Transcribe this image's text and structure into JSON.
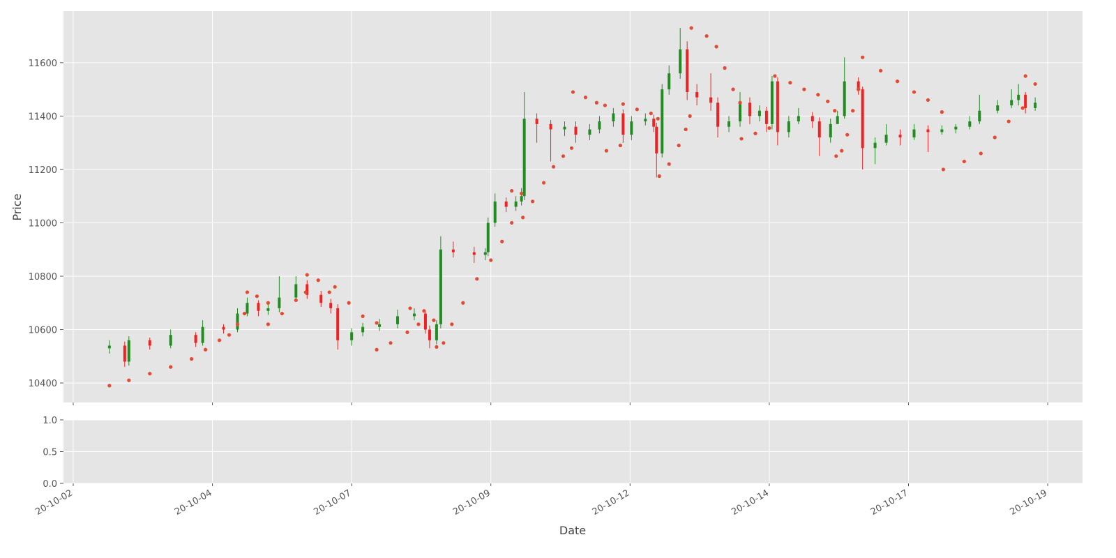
{
  "chart_data": {
    "type": "candlestick",
    "xlabel": "Date",
    "ylabel": "Price",
    "up_color": "#228b22",
    "down_color": "#ee2222",
    "grid": true,
    "xlim": [
      -7,
      725
    ],
    "xticks": [
      {
        "value": 0,
        "label": "20-10-02"
      },
      {
        "value": 100,
        "label": "20-10-04"
      },
      {
        "value": 200,
        "label": "20-10-07"
      },
      {
        "value": 300,
        "label": "20-10-09"
      },
      {
        "value": 400,
        "label": "20-10-12"
      },
      {
        "value": 500,
        "label": "20-10-14"
      },
      {
        "value": 600,
        "label": "20-10-17"
      },
      {
        "value": 700,
        "label": "20-10-19"
      }
    ],
    "ylim": [
      10327,
      11793
    ],
    "yticks": [
      10400,
      10600,
      10800,
      11000,
      11200,
      11400,
      11600
    ],
    "x": [
      26,
      37,
      40,
      55,
      70,
      88,
      93,
      108,
      118,
      125,
      133,
      140,
      148,
      160,
      168,
      178,
      185,
      190,
      200,
      208,
      220,
      233,
      245,
      253,
      256,
      261,
      264,
      273,
      288,
      296,
      298,
      303,
      311,
      318,
      322,
      324,
      333,
      343,
      353,
      361,
      371,
      378,
      388,
      395,
      401,
      411,
      417,
      419,
      423,
      428,
      436,
      441,
      448,
      458,
      463,
      471,
      479,
      486,
      493,
      498,
      502,
      506,
      514,
      521,
      531,
      536,
      544,
      549,
      554,
      564,
      567,
      576,
      584,
      594,
      604,
      614,
      624,
      634,
      644,
      651,
      664,
      674,
      679,
      684,
      691
    ],
    "open": [
      10530,
      10540,
      10480,
      10560,
      10540,
      10580,
      10550,
      10610,
      10600,
      10660,
      10700,
      10670,
      10680,
      10720,
      10770,
      10730,
      10700,
      10680,
      10560,
      10590,
      10610,
      10620,
      10650,
      10660,
      10600,
      10560,
      10620,
      10900,
      10890,
      10880,
      10890,
      11000,
      11080,
      11060,
      11080,
      11100,
      11390,
      11370,
      11350,
      11360,
      11330,
      11350,
      11380,
      11410,
      11330,
      11380,
      11390,
      11360,
      11260,
      11500,
      11560,
      11650,
      11490,
      11470,
      11450,
      11360,
      11380,
      11450,
      11400,
      11420,
      11370,
      11530,
      11340,
      11380,
      11400,
      11380,
      11320,
      11370,
      11400,
      11530,
      11500,
      11280,
      11300,
      11330,
      11320,
      11350,
      11340,
      11350,
      11360,
      11380,
      11420,
      11440,
      11460,
      11480,
      11430
    ],
    "high": [
      10560,
      10555,
      10575,
      10570,
      10600,
      10590,
      10635,
      10620,
      10680,
      10720,
      10710,
      10700,
      10800,
      10800,
      10785,
      10745,
      10715,
      10695,
      10605,
      10625,
      10640,
      10675,
      10680,
      10670,
      10615,
      10635,
      10950,
      10930,
      10910,
      10905,
      11020,
      11110,
      11095,
      11100,
      11130,
      11490,
      11410,
      11385,
      11380,
      11380,
      11370,
      11400,
      11430,
      11425,
      11400,
      11410,
      11405,
      11375,
      11520,
      11590,
      11730,
      11680,
      11520,
      11560,
      11470,
      11400,
      11490,
      11470,
      11440,
      11435,
      11550,
      11545,
      11400,
      11430,
      11415,
      11395,
      11390,
      11420,
      11620,
      11545,
      11510,
      11320,
      11370,
      11350,
      11370,
      11365,
      11365,
      11370,
      11400,
      11480,
      11460,
      11500,
      11520,
      11490,
      11470
    ],
    "low": [
      10510,
      10460,
      10465,
      10525,
      10530,
      10535,
      10540,
      10585,
      10590,
      10650,
      10650,
      10655,
      10665,
      10710,
      10715,
      10685,
      10660,
      10525,
      10540,
      10575,
      10595,
      10605,
      10635,
      10585,
      10530,
      10545,
      10605,
      10870,
      10850,
      10860,
      10875,
      10985,
      11040,
      11045,
      11065,
      11085,
      11300,
      11230,
      11325,
      11300,
      11310,
      11335,
      11360,
      11300,
      11310,
      11365,
      11340,
      11170,
      11245,
      11480,
      11540,
      11460,
      11440,
      11420,
      11320,
      11340,
      11360,
      11370,
      11380,
      11340,
      11350,
      11290,
      11320,
      11370,
      11355,
      11250,
      11300,
      11380,
      11390,
      11480,
      11200,
      11220,
      11290,
      11290,
      11310,
      11265,
      11330,
      11335,
      11350,
      11370,
      11410,
      11430,
      11440,
      11410,
      11420
    ],
    "close": [
      10540,
      10480,
      10560,
      10540,
      10580,
      10550,
      10610,
      10600,
      10660,
      10700,
      10670,
      10680,
      10720,
      10770,
      10730,
      10700,
      10680,
      10560,
      10590,
      10610,
      10620,
      10650,
      10660,
      10600,
      10560,
      10620,
      10900,
      10890,
      10880,
      10890,
      11000,
      11080,
      11060,
      11080,
      11100,
      11390,
      11370,
      11350,
      11360,
      11330,
      11350,
      11380,
      11410,
      11330,
      11380,
      11390,
      11360,
      11260,
      11500,
      11560,
      11650,
      11490,
      11470,
      11450,
      11360,
      11380,
      11450,
      11400,
      11420,
      11370,
      11530,
      11340,
      11380,
      11400,
      11380,
      11320,
      11370,
      11400,
      11530,
      11500,
      11280,
      11300,
      11330,
      11320,
      11350,
      11340,
      11350,
      11360,
      11380,
      11420,
      11440,
      11460,
      11480,
      11430,
      11450
    ],
    "overlay": {
      "type": "scatter",
      "color": "#e24a33",
      "x": [
        26,
        40,
        55,
        70,
        85,
        95,
        105,
        112,
        118,
        123,
        125,
        132,
        140,
        140,
        150,
        160,
        167,
        168,
        176,
        184,
        188,
        198,
        208,
        218,
        218,
        228,
        240,
        248,
        242,
        252,
        259,
        261,
        266,
        272,
        280,
        290,
        300,
        308,
        315,
        315,
        322,
        323,
        330,
        338,
        345,
        352,
        358,
        359,
        368,
        376,
        382,
        383,
        393,
        395,
        405,
        415,
        420,
        421,
        428,
        435,
        440,
        443,
        444,
        455,
        462,
        468,
        474,
        479,
        480,
        490,
        500,
        504,
        515,
        525,
        535,
        542,
        547,
        548,
        552,
        556,
        560,
        564,
        567,
        580,
        592,
        604,
        614,
        624,
        625,
        640,
        652,
        662,
        672,
        682,
        684,
        691
      ],
      "values": [
        10390,
        10410,
        10435,
        10460,
        10490,
        10525,
        10560,
        10580,
        10620,
        10660,
        10740,
        10725,
        10700,
        10620,
        10660,
        10710,
        10740,
        10805,
        10785,
        10740,
        10760,
        10700,
        10650,
        10625,
        10525,
        10550,
        10590,
        10620,
        10680,
        10670,
        10635,
        10535,
        10550,
        10620,
        10700,
        10790,
        10860,
        10930,
        11000,
        11120,
        11110,
        11020,
        11080,
        11150,
        11210,
        11250,
        11280,
        11490,
        11470,
        11450,
        11440,
        11270,
        11290,
        11445,
        11425,
        11410,
        11390,
        11175,
        11220,
        11290,
        11350,
        11400,
        11730,
        11700,
        11660,
        11580,
        11500,
        11450,
        11315,
        11335,
        11355,
        11550,
        11525,
        11500,
        11480,
        11455,
        11420,
        11250,
        11270,
        11330,
        11420,
        11500,
        11620,
        11570,
        11530,
        11490,
        11460,
        11415,
        11200,
        11230,
        11260,
        11320,
        11380,
        11430,
        11550,
        11520
      ]
    },
    "subplot": {
      "ylim": [
        0,
        1
      ],
      "yticks": [
        {
          "value": 0,
          "label": "0.0"
        },
        {
          "value": 0.5,
          "label": "0.5"
        },
        {
          "value": 1,
          "label": "1.0"
        }
      ]
    }
  }
}
